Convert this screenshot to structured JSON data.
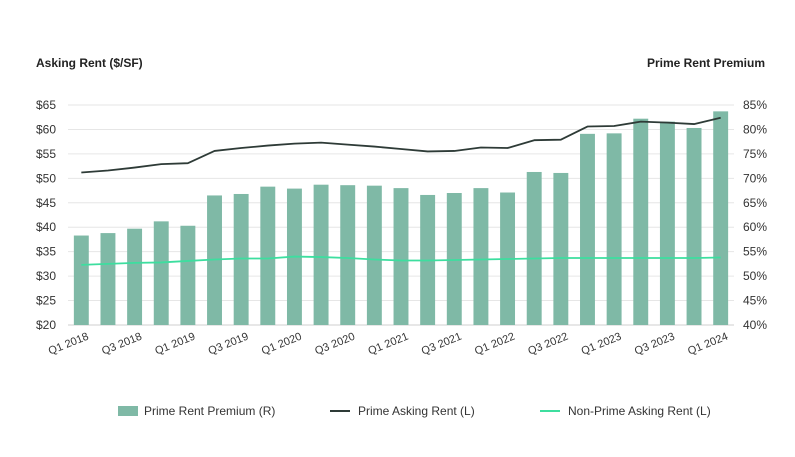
{
  "colors": {
    "bar": "#7fb9a6",
    "prime_line": "#2e3b37",
    "nonprime_line": "#3dde9f",
    "grid": "#e6e6e6",
    "tick_text": "#333333"
  },
  "chart_data": {
    "type": "bar",
    "left_axis_title": "Asking Rent ($/SF)",
    "right_axis_title": "Prime Rent Premium",
    "left_ylim": [
      20,
      65
    ],
    "left_ticks": [
      "$20",
      "$25",
      "$30",
      "$35",
      "$40",
      "$45",
      "$50",
      "$55",
      "$60",
      "$65"
    ],
    "right_ylim": [
      40,
      85
    ],
    "right_ticks": [
      "40%",
      "45%",
      "50%",
      "55%",
      "60%",
      "65%",
      "70%",
      "75%",
      "80%",
      "85%"
    ],
    "grid": true,
    "legend_position": "bottom",
    "categories": [
      "Q1 2018",
      "Q2 2018",
      "Q3 2018",
      "Q4 2018",
      "Q1 2019",
      "Q2 2019",
      "Q3 2019",
      "Q4 2019",
      "Q1 2020",
      "Q2 2020",
      "Q3 2020",
      "Q4 2020",
      "Q1 2021",
      "Q2 2021",
      "Q3 2021",
      "Q4 2021",
      "Q1 2022",
      "Q2 2022",
      "Q3 2022",
      "Q4 2022",
      "Q1 2023",
      "Q2 2023",
      "Q3 2023",
      "Q4 2023",
      "Q1 2024"
    ],
    "x_tick_labels": [
      "Q1 2018",
      "Q3 2018",
      "Q1 2019",
      "Q3 2019",
      "Q1 2020",
      "Q3 2020",
      "Q1 2021",
      "Q3 2021",
      "Q1 2022",
      "Q3 2022",
      "Q1 2023",
      "Q3 2023",
      "Q1 2024"
    ],
    "series": [
      {
        "name": "Prime Rent Premium (R)",
        "type": "bar",
        "axis": "right",
        "values": [
          58.3,
          58.8,
          59.7,
          61.2,
          60.3,
          66.5,
          66.8,
          68.3,
          67.9,
          68.7,
          68.6,
          68.5,
          68.0,
          66.6,
          67.0,
          68.0,
          67.1,
          71.3,
          71.1,
          79.1,
          79.2,
          82.2,
          81.6,
          80.3,
          83.7
        ]
      },
      {
        "name": "Prime Asking Rent (L)",
        "type": "line",
        "axis": "left",
        "values": [
          51.2,
          51.6,
          52.2,
          52.9,
          53.1,
          55.6,
          56.2,
          56.7,
          57.1,
          57.3,
          56.9,
          56.5,
          56.0,
          55.5,
          55.6,
          56.3,
          56.2,
          57.8,
          57.9,
          60.6,
          60.7,
          61.6,
          61.4,
          61.1,
          62.4
        ]
      },
      {
        "name": "Non-Prime Asking Rent (L)",
        "type": "line",
        "axis": "left",
        "values": [
          32.3,
          32.5,
          32.7,
          32.8,
          33.1,
          33.4,
          33.6,
          33.6,
          34.0,
          33.9,
          33.7,
          33.4,
          33.2,
          33.2,
          33.3,
          33.4,
          33.5,
          33.6,
          33.7,
          33.7,
          33.7,
          33.7,
          33.7,
          33.7,
          33.8
        ]
      }
    ]
  }
}
